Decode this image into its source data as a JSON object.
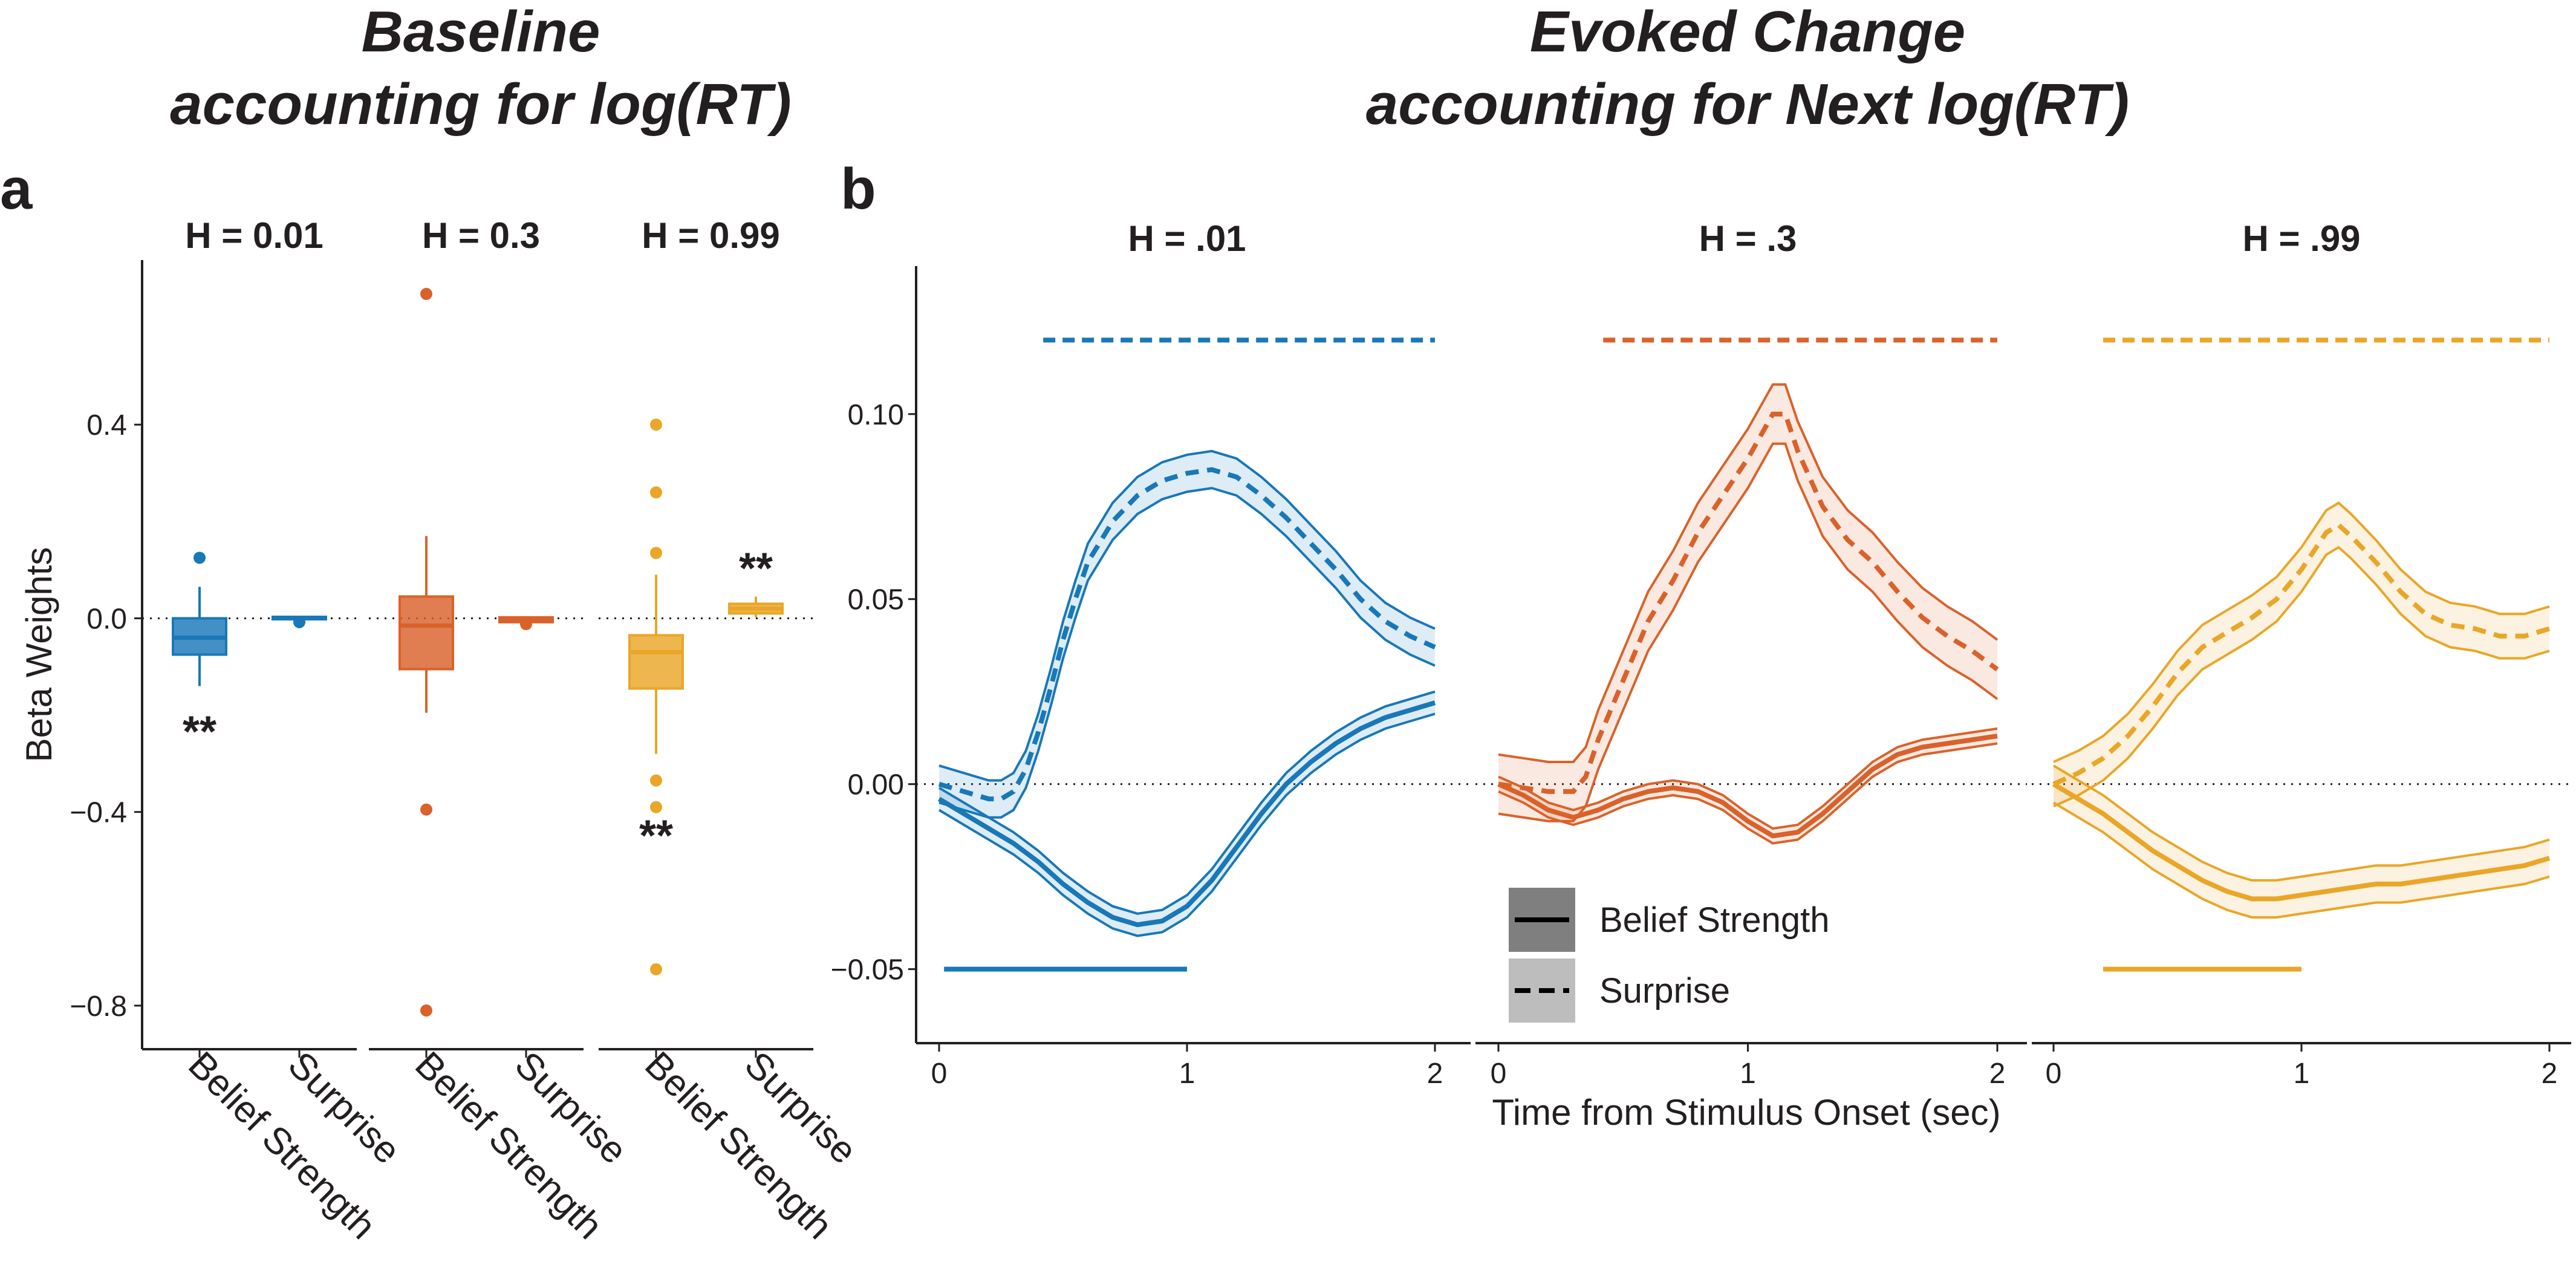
{
  "titles": {
    "left_line1": "Baseline",
    "left_line2": "accounting for log(RT)",
    "right_line1": "Evoked Change",
    "right_line2": "accounting for Next log(RT)"
  },
  "panel_labels": {
    "a": "a",
    "b": "b"
  },
  "colors": {
    "h001": "#1878b8",
    "h03": "#d9622b",
    "h099": "#e9a627",
    "text": "#231f20"
  },
  "chart_data": [
    {
      "type": "box",
      "ylabel": "Beta Weights",
      "yticks": [
        0.4,
        0.0,
        -0.4,
        -0.8
      ],
      "ytick_labels": [
        "0.4",
        "0.0",
        "−0.4",
        "−0.8"
      ],
      "ylim": [
        -0.89,
        0.74
      ],
      "categories": [
        "Belief Strength",
        "Surprise"
      ],
      "facets": [
        {
          "label": "H = 0.01",
          "color": "#1878b8",
          "boxes": [
            {
              "category": "Belief Strength",
              "q1": -0.075,
              "median": -0.04,
              "q3": 0.0,
              "whisker_low": -0.14,
              "whisker_high": 0.065,
              "outliers": [
                0.125
              ],
              "annotation": "**"
            },
            {
              "category": "Surprise",
              "q1": -0.002,
              "median": 0.0,
              "q3": 0.003,
              "whisker_low": -0.004,
              "whisker_high": 0.005,
              "outliers": [
                -0.008
              ],
              "annotation": ""
            }
          ]
        },
        {
          "label": "H = 0.3",
          "color": "#d9622b",
          "boxes": [
            {
              "category": "Belief Strength",
              "q1": -0.105,
              "median": -0.015,
              "q3": 0.045,
              "whisker_low": -0.195,
              "whisker_high": 0.17,
              "outliers": [
                0.67,
                -0.395,
                -0.81
              ],
              "annotation": ""
            },
            {
              "category": "Surprise",
              "q1": -0.008,
              "median": -0.004,
              "q3": 0.002,
              "whisker_low": -0.011,
              "whisker_high": 0.004,
              "outliers": [
                -0.012
              ],
              "annotation": ""
            }
          ]
        },
        {
          "label": "H = 0.99",
          "color": "#e9a627",
          "boxes": [
            {
              "category": "Belief Strength",
              "q1": -0.145,
              "median": -0.07,
              "q3": -0.035,
              "whisker_low": -0.28,
              "whisker_high": 0.09,
              "outliers": [
                0.4,
                0.26,
                0.135,
                -0.335,
                -0.39,
                -0.725
              ],
              "annotation": "**"
            },
            {
              "category": "Surprise",
              "q1": 0.01,
              "median": 0.02,
              "q3": 0.03,
              "whisker_low": 0.002,
              "whisker_high": 0.045,
              "outliers": [],
              "annotation": "**"
            }
          ]
        }
      ]
    },
    {
      "type": "line",
      "xlabel": "Time from Stimulus Onset (sec)",
      "xlim": [
        0,
        2
      ],
      "xticks": [
        0,
        1,
        2
      ],
      "ylim": [
        -0.07,
        0.14
      ],
      "yticks": [
        -0.05,
        0.0,
        0.05,
        0.1
      ],
      "ytick_labels": [
        "−0.05",
        "0.00",
        "0.05",
        "0.10"
      ],
      "legend": [
        {
          "label": "Belief Strength",
          "linestyle": "solid"
        },
        {
          "label": "Surprise",
          "linestyle": "dashed"
        }
      ],
      "facets": [
        {
          "label": "H = .01",
          "color": "#1878b8",
          "series": [
            {
              "name": "Surprise",
              "linestyle": "dashed",
              "x": [
                0,
                0.1,
                0.2,
                0.25,
                0.3,
                0.35,
                0.4,
                0.45,
                0.5,
                0.55,
                0.6,
                0.7,
                0.8,
                0.9,
                1.0,
                1.1,
                1.2,
                1.3,
                1.4,
                1.5,
                1.6,
                1.7,
                1.8,
                1.9,
                2.0
              ],
              "y": [
                0,
                -0.002,
                -0.004,
                -0.004,
                -0.002,
                0.004,
                0.014,
                0.026,
                0.039,
                0.05,
                0.06,
                0.071,
                0.078,
                0.082,
                0.084,
                0.085,
                0.083,
                0.078,
                0.072,
                0.065,
                0.058,
                0.05,
                0.044,
                0.04,
                0.037
              ],
              "band": 0.005
            },
            {
              "name": "Belief Strength",
              "linestyle": "solid",
              "x": [
                0,
                0.1,
                0.2,
                0.3,
                0.4,
                0.5,
                0.6,
                0.7,
                0.8,
                0.9,
                1.0,
                1.1,
                1.2,
                1.3,
                1.4,
                1.5,
                1.6,
                1.7,
                1.8,
                1.9,
                2.0
              ],
              "y": [
                -0.004,
                -0.008,
                -0.012,
                -0.016,
                -0.021,
                -0.027,
                -0.032,
                -0.036,
                -0.038,
                -0.037,
                -0.033,
                -0.026,
                -0.017,
                -0.008,
                0.0,
                0.006,
                0.011,
                0.015,
                0.018,
                0.02,
                0.022
              ],
              "band": 0.003
            }
          ],
          "significance": [
            {
              "series": "Surprise",
              "linestyle": "dashed",
              "y": 0.12,
              "x_start": 0.42,
              "x_end": 2.0
            },
            {
              "series": "Belief Strength",
              "linestyle": "solid",
              "y": -0.05,
              "x_start": 0.02,
              "x_end": 1.0
            }
          ]
        },
        {
          "label": "H = .3",
          "color": "#d9622b",
          "series": [
            {
              "name": "Surprise",
              "linestyle": "dashed",
              "x": [
                0,
                0.1,
                0.2,
                0.3,
                0.35,
                0.4,
                0.5,
                0.6,
                0.7,
                0.8,
                0.9,
                1.0,
                1.1,
                1.15,
                1.2,
                1.3,
                1.4,
                1.5,
                1.6,
                1.7,
                1.8,
                1.9,
                2.0
              ],
              "y": [
                0,
                -0.001,
                -0.002,
                -0.002,
                0.002,
                0.012,
                0.028,
                0.044,
                0.055,
                0.068,
                0.078,
                0.088,
                0.1,
                0.1,
                0.09,
                0.075,
                0.066,
                0.06,
                0.052,
                0.045,
                0.04,
                0.036,
                0.031
              ],
              "band": 0.008
            },
            {
              "name": "Belief Strength",
              "linestyle": "solid",
              "x": [
                0,
                0.1,
                0.2,
                0.3,
                0.4,
                0.5,
                0.6,
                0.7,
                0.8,
                0.9,
                1.0,
                1.1,
                1.2,
                1.3,
                1.4,
                1.5,
                1.6,
                1.7,
                1.8,
                1.9,
                2.0
              ],
              "y": [
                0,
                -0.003,
                -0.007,
                -0.009,
                -0.007,
                -0.004,
                -0.002,
                -0.001,
                -0.002,
                -0.005,
                -0.01,
                -0.014,
                -0.013,
                -0.008,
                -0.002,
                0.004,
                0.008,
                0.01,
                0.011,
                0.012,
                0.013
              ],
              "band": 0.002
            }
          ],
          "significance": [
            {
              "series": "Surprise",
              "linestyle": "dashed",
              "y": 0.12,
              "x_start": 0.42,
              "x_end": 2.0
            }
          ]
        },
        {
          "label": "H = .99",
          "color": "#e9a627",
          "series": [
            {
              "name": "Surprise",
              "linestyle": "dashed",
              "x": [
                0,
                0.1,
                0.2,
                0.3,
                0.4,
                0.5,
                0.6,
                0.7,
                0.8,
                0.9,
                1.0,
                1.1,
                1.15,
                1.2,
                1.3,
                1.4,
                1.5,
                1.6,
                1.7,
                1.8,
                1.9,
                2.0
              ],
              "y": [
                0,
                0.003,
                0.007,
                0.013,
                0.021,
                0.03,
                0.037,
                0.041,
                0.045,
                0.05,
                0.058,
                0.068,
                0.07,
                0.067,
                0.06,
                0.052,
                0.046,
                0.043,
                0.042,
                0.04,
                0.04,
                0.042
              ],
              "band": 0.006
            },
            {
              "name": "Belief Strength",
              "linestyle": "solid",
              "x": [
                0,
                0.1,
                0.2,
                0.3,
                0.4,
                0.5,
                0.6,
                0.7,
                0.8,
                0.9,
                1.0,
                1.1,
                1.2,
                1.3,
                1.4,
                1.5,
                1.6,
                1.7,
                1.8,
                1.9,
                2.0
              ],
              "y": [
                0,
                -0.004,
                -0.008,
                -0.013,
                -0.018,
                -0.022,
                -0.026,
                -0.029,
                -0.031,
                -0.031,
                -0.03,
                -0.029,
                -0.028,
                -0.027,
                -0.027,
                -0.026,
                -0.025,
                -0.024,
                -0.023,
                -0.022,
                -0.02
              ],
              "band": 0.005
            }
          ],
          "significance": [
            {
              "series": "Surprise",
              "linestyle": "dashed",
              "y": 0.12,
              "x_start": 0.2,
              "x_end": 2.0
            },
            {
              "series": "Belief Strength",
              "linestyle": "solid",
              "y": -0.05,
              "x_start": 0.2,
              "x_end": 1.0
            }
          ]
        }
      ]
    }
  ]
}
